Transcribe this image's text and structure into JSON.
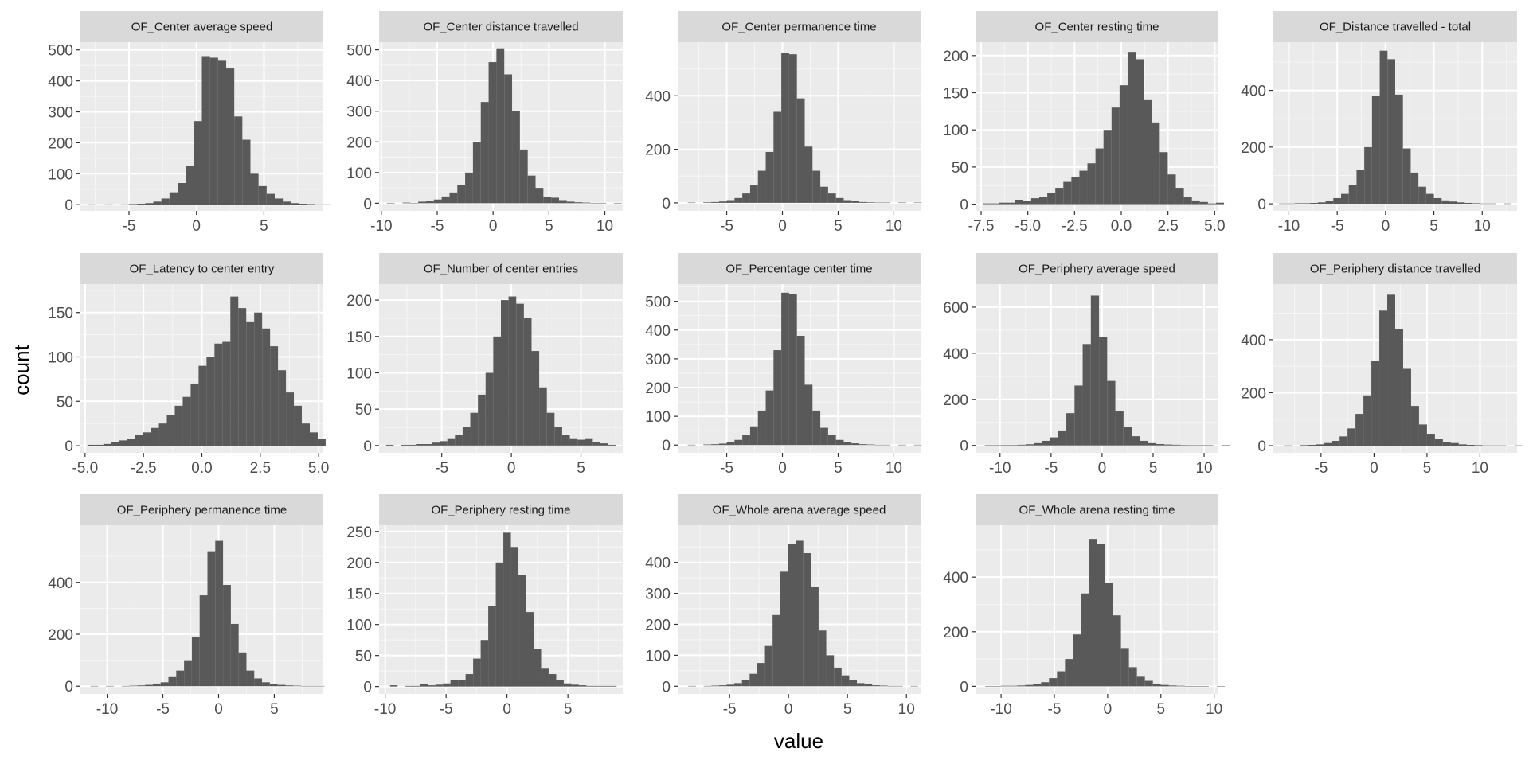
{
  "chart_data": {
    "type": "histogram",
    "facet_layout": "facet_wrap, 5 columns, free scales",
    "xlabel": "value",
    "ylabel": "count",
    "panels": [
      {
        "title": "OF_Center average speed",
        "xlim": [
          -8.6,
          9.4
        ],
        "ylim": [
          -20,
          525
        ],
        "xticks": [
          -5,
          0,
          5
        ],
        "xtick_labels": [
          "-5",
          "0",
          "5"
        ],
        "yticks": [
          0,
          100,
          200,
          300,
          400,
          500
        ],
        "ytick_labels": [
          "0",
          "100",
          "200",
          "300",
          "400",
          "500"
        ],
        "bins_start": -8.0,
        "bin_width": 0.6,
        "counts": [
          1,
          0,
          1,
          0,
          1,
          2,
          3,
          5,
          10,
          20,
          40,
          70,
          125,
          270,
          480,
          475,
          465,
          440,
          285,
          210,
          100,
          60,
          35,
          20,
          10,
          5,
          3,
          2,
          1,
          1
        ]
      },
      {
        "title": "OF_Center distance travelled",
        "xlim": [
          -10.2,
          11.6
        ],
        "ylim": [
          -25,
          525
        ],
        "xticks": [
          -10,
          -5,
          0,
          5,
          10
        ],
        "xtick_labels": [
          "-10",
          "-5",
          "0",
          "5",
          "10"
        ],
        "yticks": [
          0,
          100,
          200,
          300,
          400,
          500
        ],
        "ytick_labels": [
          "0",
          "100",
          "200",
          "300",
          "400",
          "500"
        ],
        "bins_start": -9.5,
        "bin_width": 0.7,
        "counts": [
          1,
          0,
          2,
          1,
          5,
          8,
          12,
          22,
          35,
          60,
          100,
          200,
          330,
          460,
          505,
          420,
          300,
          175,
          90,
          50,
          20,
          18,
          10,
          5,
          3,
          2,
          1,
          1,
          0,
          1
        ]
      },
      {
        "title": "OF_Center permanence time",
        "xlim": [
          -9.4,
          12.4
        ],
        "ylim": [
          -30,
          600
        ],
        "xticks": [
          -5,
          0,
          5,
          10
        ],
        "xtick_labels": [
          "-5",
          "0",
          "5",
          "10"
        ],
        "yticks": [
          0,
          200,
          400
        ],
        "ytick_labels": [
          "0",
          "200",
          "400"
        ],
        "bins_start": -8.5,
        "bin_width": 0.7,
        "counts": [
          1,
          0,
          2,
          3,
          5,
          10,
          18,
          35,
          65,
          120,
          190,
          340,
          560,
          555,
          390,
          210,
          120,
          60,
          35,
          18,
          10,
          6,
          3,
          2,
          1,
          1,
          0,
          1,
          0,
          1
        ]
      },
      {
        "title": "OF_Center resting time",
        "xlim": [
          -7.8,
          5.2
        ],
        "ylim": [
          -9,
          218
        ],
        "xticks": [
          -7.5,
          -5,
          -2.5,
          0,
          2.5,
          5
        ],
        "xtick_labels": [
          "-7.5",
          "-5.0",
          "-2.5",
          "0.0",
          "2.5",
          "5.0"
        ],
        "yticks": [
          0,
          50,
          100,
          150,
          200
        ],
        "ytick_labels": [
          "0",
          "50",
          "100",
          "150",
          "200"
        ],
        "bins_start": -7.4,
        "bin_width": 0.43,
        "counts": [
          1,
          1,
          2,
          2,
          6,
          4,
          8,
          10,
          15,
          22,
          30,
          36,
          45,
          55,
          75,
          100,
          130,
          160,
          205,
          195,
          140,
          110,
          70,
          40,
          22,
          10,
          5,
          3,
          1,
          2
        ]
      },
      {
        "title": "OF_Distance travelled - total",
        "xlim": [
          -11.6,
          13.6
        ],
        "ylim": [
          -25,
          570
        ],
        "xticks": [
          -10,
          -5,
          0,
          5,
          10
        ],
        "xtick_labels": [
          "-10",
          "-5",
          "0",
          "5",
          "10"
        ],
        "yticks": [
          0,
          200,
          400
        ],
        "ytick_labels": [
          "0",
          "200",
          "400"
        ],
        "bins_start": -11,
        "bin_width": 0.8,
        "counts": [
          1,
          1,
          2,
          2,
          3,
          5,
          10,
          20,
          35,
          65,
          120,
          200,
          380,
          540,
          510,
          385,
          195,
          110,
          60,
          35,
          20,
          12,
          8,
          5,
          3,
          2,
          1,
          1,
          0,
          1
        ]
      },
      {
        "title": "OF_Latency to center entry",
        "xlim": [
          -5.2,
          5.2
        ],
        "ylim": [
          -8,
          182
        ],
        "xticks": [
          -5,
          -2.5,
          0,
          2.5,
          5
        ],
        "xtick_labels": [
          "-5.0",
          "-2.5",
          "0.0",
          "2.5",
          "5.0"
        ],
        "yticks": [
          0,
          50,
          100,
          150
        ],
        "ytick_labels": [
          "0",
          "50",
          "100",
          "150"
        ],
        "bins_start": -4.9,
        "bin_width": 0.34,
        "counts": [
          1,
          1,
          2,
          4,
          6,
          8,
          12,
          15,
          20,
          25,
          35,
          45,
          55,
          70,
          90,
          100,
          115,
          117,
          168,
          155,
          140,
          150,
          132,
          112,
          85,
          60,
          45,
          25,
          15,
          8
        ]
      },
      {
        "title": "OF_Number of center entries",
        "xlim": [
          -9.5,
          8.0
        ],
        "ylim": [
          -10,
          222
        ],
        "xticks": [
          -5,
          0,
          5
        ],
        "xtick_labels": [
          "-5",
          "0",
          "5"
        ],
        "yticks": [
          0,
          50,
          100,
          150,
          200
        ],
        "ytick_labels": [
          "0",
          "50",
          "100",
          "150",
          "200"
        ],
        "bins_start": -9.0,
        "bin_width": 0.55,
        "counts": [
          1,
          0,
          1,
          1,
          2,
          2,
          4,
          6,
          10,
          15,
          25,
          45,
          70,
          100,
          150,
          200,
          205,
          195,
          175,
          130,
          80,
          45,
          25,
          15,
          10,
          8,
          10,
          5,
          3,
          1
        ]
      },
      {
        "title": "OF_Percentage center time",
        "xlim": [
          -9.4,
          12.4
        ],
        "ylim": [
          -27,
          560
        ],
        "xticks": [
          -5,
          0,
          5,
          10
        ],
        "xtick_labels": [
          "-5",
          "0",
          "5",
          "10"
        ],
        "yticks": [
          0,
          100,
          200,
          300,
          400,
          500
        ],
        "ytick_labels": [
          "0",
          "100",
          "200",
          "300",
          "400",
          "500"
        ],
        "bins_start": -8.5,
        "bin_width": 0.7,
        "counts": [
          1,
          0,
          2,
          3,
          5,
          10,
          18,
          35,
          65,
          120,
          190,
          330,
          530,
          525,
          380,
          210,
          120,
          60,
          35,
          18,
          10,
          6,
          3,
          2,
          1,
          1,
          0,
          1,
          0,
          1
        ]
      },
      {
        "title": "OF_Periphery average speed",
        "xlim": [
          -12.4,
          11.4
        ],
        "ylim": [
          -32,
          700
        ],
        "xticks": [
          -10,
          -5,
          0,
          5,
          10
        ],
        "xtick_labels": [
          "-10",
          "-5",
          "0",
          "5",
          "10"
        ],
        "yticks": [
          0,
          200,
          400,
          600
        ],
        "ytick_labels": [
          "0",
          "200",
          "400",
          "600"
        ],
        "bins_start": -11.5,
        "bin_width": 0.8,
        "counts": [
          1,
          1,
          2,
          2,
          3,
          5,
          10,
          20,
          35,
          65,
          140,
          260,
          440,
          650,
          470,
          280,
          150,
          80,
          40,
          20,
          10,
          6,
          4,
          3,
          2,
          1,
          1,
          1,
          0,
          1
        ]
      },
      {
        "title": "OF_Periphery distance travelled",
        "xlim": [
          -9.5,
          13.5
        ],
        "ylim": [
          -27,
          610
        ],
        "xticks": [
          -5,
          0,
          5,
          10
        ],
        "xtick_labels": [
          "-5",
          "0",
          "5",
          "10"
        ],
        "yticks": [
          0,
          200,
          400
        ],
        "ytick_labels": [
          "0",
          "200",
          "400"
        ],
        "bins_start": -8.5,
        "bin_width": 0.75,
        "counts": [
          1,
          0,
          2,
          3,
          5,
          10,
          18,
          35,
          65,
          120,
          190,
          320,
          510,
          570,
          440,
          290,
          150,
          80,
          45,
          25,
          15,
          10,
          5,
          3,
          2,
          1,
          1,
          1,
          0,
          1
        ]
      },
      {
        "title": "OF_Periphery permanence time",
        "xlim": [
          -12.4,
          9.4
        ],
        "ylim": [
          -30,
          620
        ],
        "xticks": [
          -10,
          -5,
          0,
          5
        ],
        "xtick_labels": [
          "-10",
          "-5",
          "0",
          "5"
        ],
        "yticks": [
          0,
          200,
          400
        ],
        "ytick_labels": [
          "0",
          "200",
          "400"
        ],
        "bins_start": -11.5,
        "bin_width": 0.7,
        "counts": [
          1,
          0,
          1,
          0,
          1,
          2,
          3,
          5,
          10,
          15,
          35,
          60,
          100,
          190,
          350,
          520,
          560,
          390,
          240,
          130,
          60,
          30,
          15,
          8,
          5,
          3,
          2,
          1,
          1,
          1
        ]
      },
      {
        "title": "OF_Periphery resting time",
        "xlim": [
          -10.5,
          9.5
        ],
        "ylim": [
          -12,
          260
        ],
        "xticks": [
          -10,
          -5,
          0,
          5
        ],
        "xtick_labels": [
          "-10",
          "-5",
          "0",
          "5"
        ],
        "yticks": [
          0,
          50,
          100,
          150,
          200,
          250
        ],
        "ytick_labels": [
          "0",
          "50",
          "100",
          "150",
          "200",
          "250"
        ],
        "bins_start": -9.6,
        "bin_width": 0.62,
        "counts": [
          2,
          0,
          1,
          1,
          4,
          2,
          3,
          5,
          10,
          10,
          20,
          45,
          75,
          130,
          200,
          248,
          225,
          180,
          120,
          60,
          30,
          20,
          10,
          5,
          3,
          2,
          1,
          1,
          1,
          1
        ]
      },
      {
        "title": "OF_Whole arena average speed",
        "xlim": [
          -9.4,
          11.2
        ],
        "ylim": [
          -25,
          520
        ],
        "xticks": [
          -5,
          0,
          5,
          10
        ],
        "xtick_labels": [
          "-5",
          "0",
          "5",
          "10"
        ],
        "yticks": [
          0,
          100,
          200,
          300,
          400
        ],
        "ytick_labels": [
          "0",
          "100",
          "200",
          "300",
          "400"
        ],
        "bins_start": -8.5,
        "bin_width": 0.65,
        "counts": [
          1,
          0,
          1,
          2,
          3,
          5,
          10,
          20,
          40,
          75,
          130,
          230,
          370,
          460,
          470,
          430,
          320,
          180,
          100,
          60,
          35,
          20,
          10,
          6,
          3,
          2,
          1,
          1,
          0,
          1
        ]
      },
      {
        "title": "OF_Whole arena resting time",
        "xlim": [
          -12.4,
          10.4
        ],
        "ylim": [
          -28,
          590
        ],
        "xticks": [
          -10,
          -5,
          0,
          5,
          10
        ],
        "xtick_labels": [
          "-10",
          "-5",
          "0",
          "5",
          "10"
        ],
        "yticks": [
          0,
          200,
          400
        ],
        "ytick_labels": [
          "0",
          "200",
          "400"
        ],
        "bins_start": -11.5,
        "bin_width": 0.75,
        "counts": [
          1,
          1,
          2,
          2,
          3,
          5,
          8,
          15,
          30,
          55,
          100,
          190,
          340,
          540,
          520,
          380,
          260,
          140,
          70,
          35,
          20,
          10,
          5,
          3,
          2,
          1,
          1,
          1,
          0,
          1
        ]
      }
    ]
  },
  "colors": {
    "panel_bg": "#ebebeb",
    "strip_bg": "#d9d9d9",
    "grid_major": "#ffffff",
    "bar_fill": "#595959",
    "tick_text": "#4d4d4d",
    "tick_mark": "#333333"
  }
}
